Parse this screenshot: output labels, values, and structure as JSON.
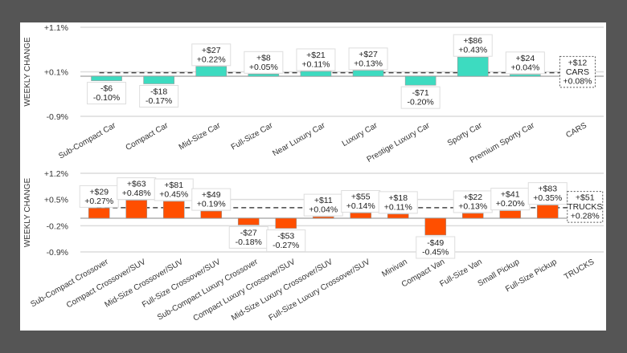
{
  "colors": {
    "background": "#555555",
    "panel": "#ffffff",
    "cars": "#3ddbc0",
    "trucks": "#ff4f00",
    "grid": "#dcdcdc",
    "baseline": "#b0b0b0",
    "average": "#444444"
  },
  "chart_data": [
    {
      "type": "bar",
      "ylabel": "WEEKLY CHANGE",
      "ylim": [
        -0.9,
        1.1
      ],
      "yticks": [
        "+1.1%",
        "+0.1%",
        "-0.9%"
      ],
      "ytick_values": [
        1.1,
        0.1,
        -0.9
      ],
      "grid": true,
      "average_line": 0.08,
      "categories": [
        "Sub-Compact Car",
        "Compact Car",
        "Mid-Size Car",
        "Full-Size Car",
        "Near Luxury Car",
        "Luxury Car",
        "Prestige Luxury Car",
        "Sporty Car",
        "Premium Sporty Car",
        "CARS"
      ],
      "values_pct": [
        -0.1,
        -0.17,
        0.22,
        0.05,
        0.11,
        0.13,
        -0.2,
        0.43,
        0.04,
        null
      ],
      "dollar_labels": [
        "-$6",
        "-$18",
        "+$27",
        "+$8",
        "+$21",
        "+$27",
        "-$71",
        "+$86",
        "+$24",
        "+$12"
      ],
      "pct_labels": [
        "-0.10%",
        "-0.17%",
        "+0.22%",
        "+0.05%",
        "+0.11%",
        "+0.13%",
        "-0.20%",
        "+0.43%",
        "+0.04%",
        "+0.08%"
      ],
      "summary": {
        "dollar": "+$12",
        "name": "CARS",
        "pct": "+0.08%"
      }
    },
    {
      "type": "bar",
      "ylabel": "WEEKLY CHANGE",
      "ylim": [
        -0.9,
        1.2
      ],
      "yticks": [
        "+1.2%",
        "+0.5%",
        "-0.2%",
        "-0.9%"
      ],
      "ytick_values": [
        1.2,
        0.5,
        -0.2,
        -0.9
      ],
      "grid": true,
      "average_line": 0.28,
      "categories": [
        "Sub-Compact Crossover",
        "Compact Crossover/SUV",
        "Mid-Size Crossover/SUV",
        "Full-Size Crossover/SUV",
        "Sub-Compact Luxury Crossover",
        "Compact Luxury Crossover/SUV",
        "Mid-Size Luxury Crossover/SUV",
        "Full-Size Luxury Crossover/SUV",
        "Minivan",
        "Compact Van",
        "Full-Size Van",
        "Small Pickup",
        "Full-Size Pickup",
        "TRUCKS"
      ],
      "values_pct": [
        0.27,
        0.48,
        0.45,
        0.19,
        -0.18,
        -0.27,
        0.04,
        0.14,
        0.11,
        -0.45,
        0.13,
        0.2,
        0.35,
        null
      ],
      "dollar_labels": [
        "+$29",
        "+$63",
        "+$81",
        "+$49",
        "-$27",
        "-$53",
        "+$11",
        "+$55",
        "+$18",
        "-$49",
        "+$22",
        "+$41",
        "+$83",
        "+$51"
      ],
      "pct_labels": [
        "+0.27%",
        "+0.48%",
        "+0.45%",
        "+0.19%",
        "-0.18%",
        "-0.27%",
        "+0.04%",
        "+0.14%",
        "+0.11%",
        "-0.45%",
        "+0.13%",
        "+0.20%",
        "+0.35%",
        "+0.28%"
      ],
      "summary": {
        "dollar": "+$51",
        "name": "TRUCKS",
        "pct": "+0.28%"
      }
    }
  ]
}
